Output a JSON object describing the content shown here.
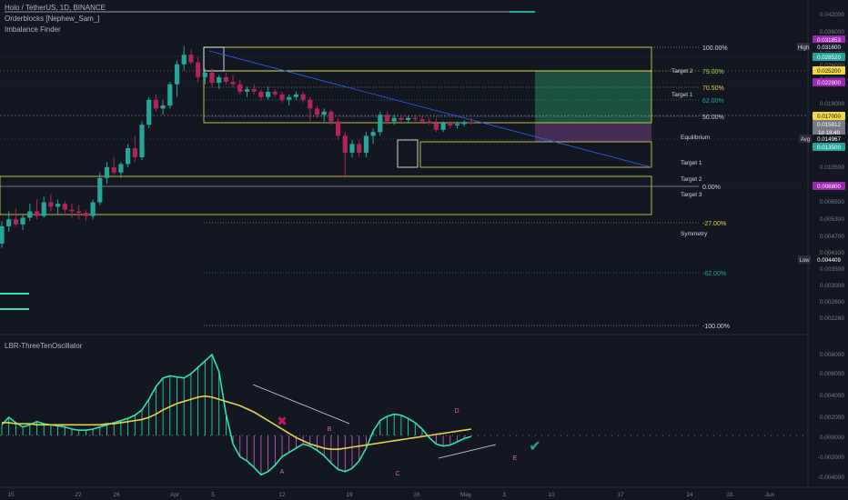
{
  "header": {
    "title": "Holo / TetherUS, 1D, BINANCE",
    "indicator1": "Orderblocks [Nephew_Sam_]",
    "indicator2": "Imbalance Finder"
  },
  "oscillator_title": "LBR-ThreeTenOscillator",
  "colors": {
    "background": "#131722",
    "up": "#26a69a",
    "down": "#b0245a",
    "oscillator_up": "#2ee6a8",
    "oscillator_down": "#e05cd0",
    "signal_line": "#e6d24a",
    "box_yellow": "#e6e04a",
    "target_zone": "#1f5a45",
    "stop_zone": "#4a2f5a"
  },
  "price_labels": [
    {
      "text": "0.031853",
      "bg": "#9c27b0"
    },
    {
      "text": "0.031600",
      "bg": "#131722"
    },
    {
      "text": "0.028520",
      "bg": "#26a69a"
    },
    {
      "text": "0.025200",
      "bg": "#f5d742"
    },
    {
      "text": "0.022800",
      "bg": "#9c27b0"
    },
    {
      "text": "0.017000",
      "bg": "#f5d742"
    },
    {
      "text": "0.015812",
      "bg": "#787b86"
    },
    {
      "text": "1d 18:40",
      "bg": "#787b86"
    },
    {
      "text": "0.014967",
      "bg": "#131722"
    },
    {
      "text": "0.013500",
      "bg": "#26a69a"
    },
    {
      "text": "0.008800",
      "bg": "#9c27b0"
    },
    {
      "text": "0.004409",
      "bg": "#131722"
    }
  ],
  "price_tags": {
    "high": "High",
    "avg": "Avg",
    "low": "Low"
  },
  "price_axis_ticks": [
    "0.042000",
    "0.036000",
    "0.030000",
    "0.026000",
    "0.023000",
    "0.019000",
    "0.016000",
    "0.013000",
    "0.010500",
    "0.008500",
    "0.006500",
    "0.005300",
    "0.004700",
    "0.004100",
    "0.003500",
    "0.003000",
    "0.002600",
    "0.002260"
  ],
  "osc_axis_ticks": [
    "0.008000",
    "0.006000",
    "0.004000",
    "0.002000",
    "0.000000",
    "-0.002000",
    "-0.004000"
  ],
  "time_axis_ticks": [
    "15",
    "22",
    "26",
    "Apr",
    "5",
    "12",
    "19",
    "26",
    "May",
    "3",
    "10",
    "17",
    "24",
    "28",
    "Jun"
  ],
  "fib_levels": [
    {
      "label": "100.00%",
      "color": "#d1d4dc"
    },
    {
      "label": "79.00%",
      "color": "#9ddc4a"
    },
    {
      "label": "70.50%",
      "color": "#e6d24a"
    },
    {
      "label": "62.00%",
      "color": "#26a69a"
    },
    {
      "label": "50.00%",
      "color": "#d1d4dc"
    },
    {
      "label": "0.00%",
      "color": "#d1d4dc"
    },
    {
      "label": "-27.00%",
      "color": "#e6d24a"
    },
    {
      "label": "-62.00%",
      "color": "#26a69a"
    },
    {
      "label": "-100.00%",
      "color": "#d1d4dc"
    }
  ],
  "harmonic_labels": [
    "Target 2",
    "Target 1",
    "Equilibrium",
    "Target 1",
    "Target 2",
    "Target 3",
    "Symmetry"
  ],
  "osc_point_labels": [
    "A",
    "B",
    "C",
    "D",
    "E"
  ],
  "chart_data": {
    "type": "candlestick",
    "title": "Holo / TetherUS, 1D, BINANCE",
    "ohlc": [
      [
        0.0052,
        0.0064,
        0.005,
        0.0061
      ],
      [
        0.0061,
        0.007,
        0.0058,
        0.0065
      ],
      [
        0.0065,
        0.0072,
        0.0061,
        0.0062
      ],
      [
        0.0062,
        0.0068,
        0.0059,
        0.0066
      ],
      [
        0.0066,
        0.0075,
        0.0064,
        0.007
      ],
      [
        0.007,
        0.0078,
        0.0065,
        0.0067
      ],
      [
        0.0067,
        0.008,
        0.0066,
        0.0076
      ],
      [
        0.0076,
        0.0082,
        0.007,
        0.0073
      ],
      [
        0.0073,
        0.0078,
        0.0068,
        0.0075
      ],
      [
        0.0075,
        0.0077,
        0.0069,
        0.0071
      ],
      [
        0.0071,
        0.0075,
        0.0066,
        0.007
      ],
      [
        0.007,
        0.0074,
        0.0065,
        0.0069
      ],
      [
        0.0069,
        0.0071,
        0.0064,
        0.0067
      ],
      [
        0.0067,
        0.0078,
        0.0065,
        0.0076
      ],
      [
        0.0076,
        0.01,
        0.0074,
        0.0095
      ],
      [
        0.0095,
        0.011,
        0.009,
        0.0105
      ],
      [
        0.0105,
        0.0115,
        0.0098,
        0.01
      ],
      [
        0.01,
        0.011,
        0.0095,
        0.0108
      ],
      [
        0.0108,
        0.013,
        0.0105,
        0.0125
      ],
      [
        0.0125,
        0.014,
        0.011,
        0.0115
      ],
      [
        0.0115,
        0.016,
        0.0112,
        0.0155
      ],
      [
        0.0155,
        0.02,
        0.015,
        0.0195
      ],
      [
        0.0195,
        0.0205,
        0.0175,
        0.018
      ],
      [
        0.018,
        0.0195,
        0.017,
        0.0185
      ],
      [
        0.0185,
        0.023,
        0.018,
        0.0225
      ],
      [
        0.0225,
        0.028,
        0.02,
        0.027
      ],
      [
        0.027,
        0.032,
        0.0255,
        0.0295
      ],
      [
        0.0295,
        0.031,
        0.027,
        0.0275
      ],
      [
        0.0275,
        0.029,
        0.023,
        0.024
      ],
      [
        0.024,
        0.026,
        0.0225,
        0.025
      ],
      [
        0.025,
        0.026,
        0.022,
        0.0228
      ],
      [
        0.0228,
        0.0245,
        0.0215,
        0.024
      ],
      [
        0.024,
        0.025,
        0.0225,
        0.023
      ],
      [
        0.023,
        0.0245,
        0.022,
        0.0225
      ],
      [
        0.0225,
        0.0235,
        0.0205,
        0.021
      ],
      [
        0.021,
        0.022,
        0.02,
        0.0215
      ],
      [
        0.0215,
        0.0225,
        0.0205,
        0.021
      ],
      [
        0.021,
        0.0215,
        0.0195,
        0.02
      ],
      [
        0.02,
        0.022,
        0.0195,
        0.021
      ],
      [
        0.021,
        0.0215,
        0.02,
        0.0205
      ],
      [
        0.0205,
        0.021,
        0.019,
        0.0195
      ],
      [
        0.0195,
        0.0205,
        0.0185,
        0.02
      ],
      [
        0.02,
        0.021,
        0.0195,
        0.0205
      ],
      [
        0.0205,
        0.021,
        0.019,
        0.0195
      ],
      [
        0.0195,
        0.02,
        0.016,
        0.018
      ],
      [
        0.018,
        0.0185,
        0.0165,
        0.017
      ],
      [
        0.017,
        0.018,
        0.016,
        0.0175
      ],
      [
        0.0175,
        0.0178,
        0.0155,
        0.016
      ],
      [
        0.016,
        0.0165,
        0.0135,
        0.014
      ],
      [
        0.014,
        0.0145,
        0.0095,
        0.012
      ],
      [
        0.012,
        0.0135,
        0.0115,
        0.013
      ],
      [
        0.013,
        0.0135,
        0.0115,
        0.012
      ],
      [
        0.012,
        0.0145,
        0.0115,
        0.014
      ],
      [
        0.014,
        0.015,
        0.013,
        0.0145
      ],
      [
        0.0145,
        0.0175,
        0.014,
        0.017
      ],
      [
        0.017,
        0.0175,
        0.0155,
        0.016
      ],
      [
        0.016,
        0.017,
        0.0155,
        0.0165
      ],
      [
        0.0165,
        0.017,
        0.016,
        0.0162
      ],
      [
        0.0162,
        0.0168,
        0.0158,
        0.0165
      ],
      [
        0.0165,
        0.017,
        0.016,
        0.0163
      ],
      [
        0.0163,
        0.0168,
        0.0158,
        0.016
      ],
      [
        0.016,
        0.0165,
        0.0155,
        0.0157
      ],
      [
        0.0157,
        0.0165,
        0.0145,
        0.0148
      ],
      [
        0.0148,
        0.016,
        0.0145,
        0.0158
      ],
      [
        0.0158,
        0.016,
        0.015,
        0.0154
      ],
      [
        0.0154,
        0.016,
        0.015,
        0.0156
      ],
      [
        0.0156,
        0.0162,
        0.0153,
        0.0159
      ],
      [
        0.0159,
        0.0165,
        0.0155,
        0.01581
      ]
    ],
    "oscillator": [
      0.001,
      0.0017,
      0.0012,
      0.0008,
      0.001,
      0.0013,
      0.0011,
      0.001,
      0.0009,
      0.0008,
      0.0006,
      0.0005,
      0.0005,
      0.0006,
      0.0008,
      0.001,
      0.0012,
      0.0014,
      0.0016,
      0.0019,
      0.0024,
      0.0034,
      0.0046,
      0.0054,
      0.0056,
      0.0055,
      0.0054,
      0.0058,
      0.0064,
      0.007,
      0.0076,
      0.006,
      0.002,
      -0.0008,
      -0.002,
      -0.0024,
      -0.003,
      -0.0037,
      -0.0034,
      -0.0028,
      -0.002,
      -0.0016,
      -0.0012,
      -0.0008,
      -0.001,
      -0.0014,
      -0.0019,
      -0.0026,
      -0.0032,
      -0.0034,
      -0.0031,
      -0.0024,
      -0.0012,
      0.0004,
      0.0014,
      0.0018,
      0.002,
      0.0019,
      0.0016,
      0.0012,
      0.0006,
      -0.0002,
      -0.0008,
      -0.001,
      -0.0009,
      -0.0006,
      -0.0003,
      -0.0001
    ],
    "signal": [
      0.0012,
      0.0012,
      0.0011,
      0.0011,
      0.0011,
      0.001,
      0.001,
      0.001,
      0.001,
      0.001,
      0.001,
      0.001,
      0.001,
      0.001,
      0.001,
      0.0011,
      0.0011,
      0.0012,
      0.0013,
      0.0014,
      0.0015,
      0.0017,
      0.002,
      0.0024,
      0.0027,
      0.003,
      0.0032,
      0.0034,
      0.0036,
      0.0037,
      0.0036,
      0.0034,
      0.0032,
      0.003,
      0.0028,
      0.0025,
      0.0022,
      0.0018,
      0.0014,
      0.001,
      0.0006,
      0.0002,
      -0.0002,
      -0.0005,
      -0.0008,
      -0.001,
      -0.0012,
      -0.0013,
      -0.0013,
      -0.0012,
      -0.0011,
      -0.001,
      -0.0009,
      -0.0008,
      -0.0007,
      -0.0006,
      -0.0005,
      -0.0004,
      -0.0003,
      -0.0002,
      -0.0001,
      0.0,
      0.0001,
      0.0002,
      0.0003,
      0.0004,
      0.0005,
      0.0006
    ]
  }
}
